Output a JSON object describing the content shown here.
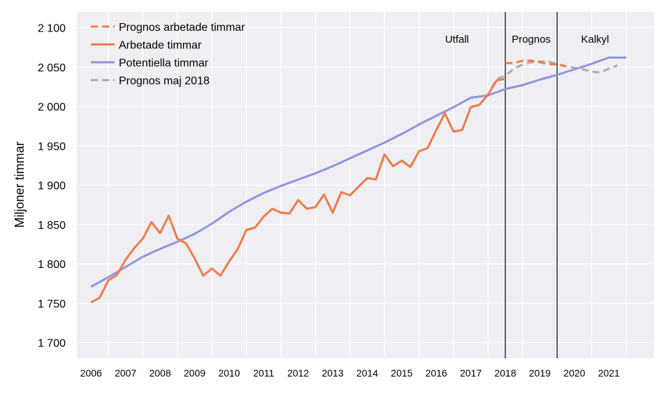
{
  "chart_data": {
    "type": "line",
    "title": "",
    "xlabel": "",
    "ylabel": "Miljoner timmar",
    "ylim": [
      1680,
      2120
    ],
    "yticks": [
      1700,
      1750,
      1800,
      1850,
      1900,
      1950,
      2000,
      2050,
      2100
    ],
    "ytick_labels": [
      "1 700",
      "1 750",
      "1 800",
      "1 850",
      "1 900",
      "1 950",
      "2 000",
      "2 050",
      "2 100"
    ],
    "xlim": [
      2005.59,
      2022.31
    ],
    "xticks": [
      2006,
      2007,
      2008,
      2009,
      2010,
      2011,
      2012,
      2013,
      2014,
      2015,
      2016,
      2017,
      2018,
      2019,
      2020,
      2021
    ],
    "xtick_labels": [
      "2006",
      "2007",
      "2008",
      "2009",
      "2010",
      "2011",
      "2012",
      "2013",
      "2014",
      "2015",
      "2016",
      "2017",
      "2018",
      "2019",
      "2020",
      "2021"
    ],
    "grid": true,
    "legend_position": "top-left",
    "background_color": "#efeef2",
    "vlines": [
      2018.0,
      2019.5
    ],
    "region_labels": [
      {
        "text": "Utfall",
        "x": 2016.6,
        "y": 2081
      },
      {
        "text": "Prognos",
        "x": 2018.75,
        "y": 2081
      },
      {
        "text": "Kalkyl",
        "x": 2020.6,
        "y": 2081
      }
    ],
    "series": [
      {
        "name": "Prognos arbetade timmar",
        "color": "#ed7d4b",
        "style": "dashed",
        "x": [
          2018.0,
          2018.25,
          2018.5,
          2018.75,
          2019.0,
          2019.25,
          2019.5,
          2019.75
        ],
        "y": [
          2055,
          2055,
          2058,
          2058,
          2056,
          2054,
          2053,
          2051
        ]
      },
      {
        "name": "Arbetade timmar",
        "color": "#ed7d4b",
        "style": "solid",
        "x": [
          2006.0,
          2006.25,
          2006.5,
          2006.75,
          2007.0,
          2007.25,
          2007.5,
          2007.75,
          2008.0,
          2008.25,
          2008.5,
          2008.75,
          2009.0,
          2009.25,
          2009.5,
          2009.75,
          2010.0,
          2010.25,
          2010.5,
          2010.75,
          2011.0,
          2011.25,
          2011.5,
          2011.75,
          2012.0,
          2012.25,
          2012.5,
          2012.75,
          2013.0,
          2013.25,
          2013.5,
          2013.75,
          2014.0,
          2014.25,
          2014.5,
          2014.75,
          2015.0,
          2015.25,
          2015.5,
          2015.75,
          2016.0,
          2016.25,
          2016.5,
          2016.75,
          2017.0,
          2017.25,
          2017.5,
          2017.75,
          2018.0
        ],
        "y": [
          1751,
          1757,
          1779,
          1786,
          1805,
          1820,
          1832,
          1853,
          1839,
          1861,
          1832,
          1826,
          1807,
          1785,
          1794,
          1785,
          1803,
          1819,
          1843,
          1846,
          1860,
          1870,
          1865,
          1864,
          1881,
          1870,
          1872,
          1888,
          1865,
          1891,
          1887,
          1898,
          1909,
          1907,
          1939,
          1924,
          1931,
          1923,
          1943,
          1947,
          1970,
          1991,
          1968,
          1970,
          1999,
          2002,
          2015,
          2033,
          2035
        ]
      },
      {
        "name": "Potentiella timmar",
        "color": "#8e95df",
        "style": "solid",
        "x": [
          2006.0,
          2006.5,
          2007.0,
          2007.5,
          2008.0,
          2008.5,
          2009.0,
          2009.5,
          2010.0,
          2010.5,
          2011.0,
          2011.5,
          2012.0,
          2012.5,
          2013.0,
          2013.5,
          2014.0,
          2014.5,
          2015.0,
          2015.5,
          2016.0,
          2016.5,
          2017.0,
          2017.5,
          2017.75,
          2018.0,
          2018.5,
          2019.0,
          2019.5,
          2020.0,
          2020.5,
          2021.0,
          2021.5
        ],
        "y": [
          1771,
          1783,
          1796,
          1809,
          1819,
          1828,
          1838,
          1851,
          1866,
          1879,
          1890,
          1899,
          1907,
          1915,
          1924,
          1934,
          1944,
          1954,
          1965,
          1977,
          1988,
          1999,
          2011,
          2014,
          2018,
          2022,
          2027,
          2034,
          2040,
          2047,
          2054,
          2062,
          2062
        ]
      },
      {
        "name": "Prognos maj 2018",
        "color": "#aeaeae",
        "style": "dashed",
        "x": [
          2006.0,
          2006.25,
          2006.5,
          2006.75,
          2007.0,
          2007.25,
          2007.5,
          2007.75,
          2008.0,
          2008.25,
          2008.5,
          2008.75,
          2009.0,
          2009.25,
          2009.5,
          2009.75,
          2010.0,
          2010.25,
          2010.5,
          2010.75,
          2011.0,
          2011.25,
          2011.5,
          2011.75,
          2012.0,
          2012.25,
          2012.5,
          2012.75,
          2013.0,
          2013.25,
          2013.5,
          2013.75,
          2014.0,
          2014.25,
          2014.5,
          2014.75,
          2015.0,
          2015.25,
          2015.5,
          2015.75,
          2016.0,
          2016.25,
          2016.5,
          2016.75,
          2017.0,
          2017.25,
          2017.5,
          2017.75,
          2018.0,
          2018.25,
          2018.5,
          2018.75,
          2019.0,
          2019.25,
          2019.5,
          2019.75,
          2020.0,
          2020.25,
          2020.5,
          2020.75,
          2021.0,
          2021.25
        ],
        "y": [
          1751,
          1757,
          1779,
          1786,
          1805,
          1820,
          1832,
          1853,
          1839,
          1861,
          1832,
          1826,
          1807,
          1785,
          1794,
          1785,
          1803,
          1819,
          1843,
          1846,
          1860,
          1870,
          1865,
          1864,
          1881,
          1870,
          1872,
          1888,
          1865,
          1891,
          1887,
          1898,
          1909,
          1907,
          1939,
          1924,
          1931,
          1923,
          1943,
          1947,
          1970,
          1991,
          1968,
          1970,
          1999,
          2002,
          2015,
          2035,
          2039,
          2048,
          2053,
          2056,
          2057,
          2057,
          2054,
          2051,
          2049,
          2047,
          2044,
          2043,
          2048,
          2052
        ]
      }
    ]
  }
}
